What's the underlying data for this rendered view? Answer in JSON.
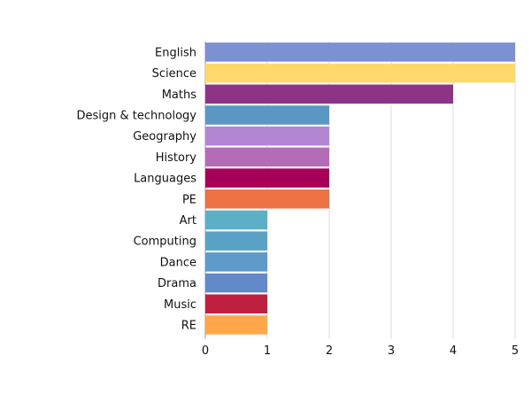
{
  "chart_data": {
    "type": "bar",
    "orientation": "horizontal",
    "categories": [
      "English",
      "Science",
      "Maths",
      "Design & technology",
      "Geography",
      "History",
      "Languages",
      "PE",
      "Art",
      "Computing",
      "Dance",
      "Drama",
      "Music",
      "RE"
    ],
    "values": [
      5,
      5,
      4,
      2,
      2,
      2,
      2,
      2,
      1,
      1,
      1,
      1,
      1,
      1
    ],
    "colors": [
      "#7C90D4",
      "#FFD86B",
      "#8E3487",
      "#5A97C3",
      "#B386D4",
      "#B56CB8",
      "#A60058",
      "#EE7244",
      "#5BAFC6",
      "#59A2C6",
      "#5E9BCA",
      "#6289C8",
      "#C02040",
      "#FFA64A"
    ],
    "xticks": [
      0,
      1,
      2,
      3,
      4,
      5
    ],
    "xlim": [
      0,
      5
    ],
    "grid": "vertical",
    "title": "",
    "xlabel": "",
    "ylabel": ""
  }
}
